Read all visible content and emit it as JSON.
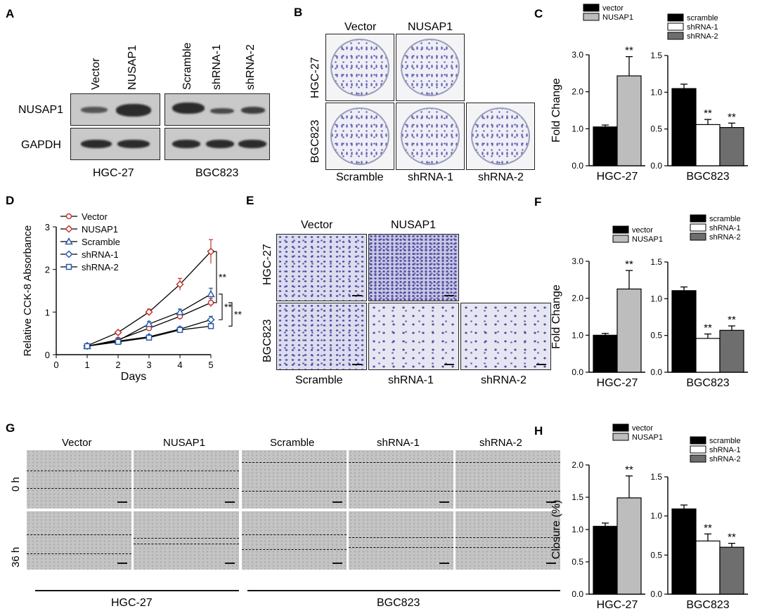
{
  "panels": {
    "A": "A",
    "B": "B",
    "C": "C",
    "D": "D",
    "E": "E",
    "F": "F",
    "G": "G",
    "H": "H"
  },
  "panel_A": {
    "lanes": [
      "Vector",
      "NUSAP1",
      "Scramble",
      "shRNA-1",
      "shRNA-2"
    ],
    "rows": [
      "NUSAP1",
      "GAPDH"
    ],
    "groups": [
      "HGC-27",
      "BGC823"
    ]
  },
  "panel_B": {
    "top_labels": [
      "Vector",
      "NUSAP1"
    ],
    "row_labels": [
      "HGC-27",
      "BGC823"
    ],
    "bottom_labels": [
      "Scramble",
      "shRNA-1",
      "shRNA-2"
    ]
  },
  "panel_E": {
    "top_labels": [
      "Vector",
      "NUSAP1"
    ],
    "row_labels": [
      "HGC-27",
      "BGC823"
    ],
    "bottom_labels": [
      "Scramble",
      "shRNA-1",
      "shRNA-2"
    ]
  },
  "panel_G": {
    "top_labels": [
      "Vector",
      "NUSAP1",
      "Scramble",
      "shRNA-1",
      "shRNA-2"
    ],
    "row_labels": [
      "0 h",
      "36 h"
    ],
    "groups": [
      "HGC-27",
      "BGC823"
    ]
  },
  "colors": {
    "vector": "#000000",
    "nusap1": "#bdbdbd",
    "scramble": "#000000",
    "shrna1": "#ffffff",
    "shrna2": "#6e6e6e",
    "line_red": "#c0392b",
    "line_blue": "#2d5aa8"
  },
  "chart_data": [
    {
      "panel": "C-left",
      "type": "bar",
      "ylabel": "Fold Change",
      "xlabel": "HGC-27",
      "ylim": [
        0,
        3.0
      ],
      "yticks": [
        "0.0",
        "1.0",
        "2.0",
        "3.0"
      ],
      "series": [
        {
          "name": "vector",
          "values": [
            1.05
          ],
          "err": [
            0.05
          ]
        },
        {
          "name": "NUSAP1",
          "values": [
            2.43
          ],
          "err": [
            0.52
          ]
        }
      ],
      "annotations": [
        "",
        "**"
      ]
    },
    {
      "panel": "C-right",
      "type": "bar",
      "xlabel": "BGC823",
      "ylim": [
        0,
        1.5
      ],
      "yticks": [
        "0.0",
        "0.5",
        "1.0",
        "1.5"
      ],
      "series": [
        {
          "name": "scramble",
          "values": [
            1.05
          ],
          "err": [
            0.06
          ]
        },
        {
          "name": "shRNA-1",
          "values": [
            0.56
          ],
          "err": [
            0.07
          ]
        },
        {
          "name": "shRNA-2",
          "values": [
            0.52
          ],
          "err": [
            0.06
          ]
        }
      ],
      "annotations": [
        "",
        "**",
        "**"
      ]
    },
    {
      "panel": "D",
      "type": "line",
      "xlabel": "Days",
      "ylabel": "Relative CCK-8 Absorbance",
      "xlim": [
        0,
        5
      ],
      "ylim": [
        0,
        3
      ],
      "xticks": [
        "0",
        "1",
        "2",
        "3",
        "4",
        "5"
      ],
      "yticks": [
        "0",
        "1",
        "2",
        "3"
      ],
      "x": [
        1,
        2,
        3,
        4,
        5
      ],
      "series": [
        {
          "name": "Vector",
          "values": [
            0.2,
            0.35,
            0.62,
            0.9,
            1.22
          ],
          "err": [
            0.02,
            0.03,
            0.05,
            0.08,
            0.1
          ],
          "color": "#c0392b",
          "marker": "circle"
        },
        {
          "name": "NUSAP1",
          "values": [
            0.21,
            0.52,
            1.0,
            1.65,
            2.42
          ],
          "err": [
            0.02,
            0.04,
            0.07,
            0.14,
            0.28
          ],
          "color": "#c0392b",
          "marker": "diamond"
        },
        {
          "name": "Scramble",
          "values": [
            0.2,
            0.33,
            0.72,
            1.0,
            1.42
          ],
          "err": [
            0.02,
            0.03,
            0.06,
            0.07,
            0.14
          ],
          "color": "#2d5aa8",
          "marker": "triangle"
        },
        {
          "name": "shRNA-1",
          "values": [
            0.2,
            0.32,
            0.42,
            0.6,
            0.82
          ],
          "err": [
            0.02,
            0.03,
            0.04,
            0.05,
            0.08
          ],
          "color": "#2d5aa8",
          "marker": "diamond"
        },
        {
          "name": "shRNA-2",
          "values": [
            0.2,
            0.3,
            0.4,
            0.58,
            0.67
          ],
          "err": [
            0.02,
            0.03,
            0.04,
            0.05,
            0.06
          ],
          "color": "#2d5aa8",
          "marker": "square"
        }
      ],
      "significance": [
        "**",
        "**",
        "**"
      ]
    },
    {
      "panel": "F-left",
      "type": "bar",
      "ylabel": "Fold Change",
      "xlabel": "HGC-27",
      "ylim": [
        0,
        3.0
      ],
      "yticks": [
        "0.0",
        "1.0",
        "2.0",
        "3.0"
      ],
      "series": [
        {
          "name": "vector",
          "values": [
            1.0
          ],
          "err": [
            0.05
          ]
        },
        {
          "name": "NUSAP1",
          "values": [
            2.25
          ],
          "err": [
            0.5
          ]
        }
      ],
      "annotations": [
        "",
        "**"
      ]
    },
    {
      "panel": "F-right",
      "type": "bar",
      "xlabel": "BGC823",
      "ylim": [
        0,
        1.5
      ],
      "yticks": [
        "0.0",
        "0.5",
        "1.0",
        "1.5"
      ],
      "series": [
        {
          "name": "scramble",
          "values": [
            1.11
          ],
          "err": [
            0.05
          ]
        },
        {
          "name": "shRNA-1",
          "values": [
            0.46
          ],
          "err": [
            0.06
          ]
        },
        {
          "name": "shRNA-2",
          "values": [
            0.57
          ],
          "err": [
            0.06
          ]
        }
      ],
      "annotations": [
        "",
        "**",
        "**"
      ]
    },
    {
      "panel": "H-left",
      "type": "bar",
      "ylabel": "Closure (%)",
      "xlabel": "HGC-27",
      "ylim": [
        0,
        2.0
      ],
      "yticks": [
        "0.0",
        "0.5",
        "1.0",
        "1.5",
        "2.0"
      ],
      "series": [
        {
          "name": "vector",
          "values": [
            1.05
          ],
          "err": [
            0.05
          ]
        },
        {
          "name": "NUSAP1",
          "values": [
            1.49
          ],
          "err": [
            0.34
          ]
        }
      ],
      "annotations": [
        "",
        "**"
      ]
    },
    {
      "panel": "H-right",
      "type": "bar",
      "xlabel": "BGC823",
      "ylim": [
        0,
        1.5
      ],
      "yticks": [
        "0.0",
        "0.5",
        "1.0",
        "1.5"
      ],
      "series": [
        {
          "name": "scramble",
          "values": [
            1.09
          ],
          "err": [
            0.05
          ]
        },
        {
          "name": "shRNA-1",
          "values": [
            0.68
          ],
          "err": [
            0.09
          ]
        },
        {
          "name": "shRNA-2",
          "values": [
            0.6
          ],
          "err": [
            0.05
          ]
        }
      ],
      "annotations": [
        "",
        "**",
        "**"
      ]
    }
  ]
}
